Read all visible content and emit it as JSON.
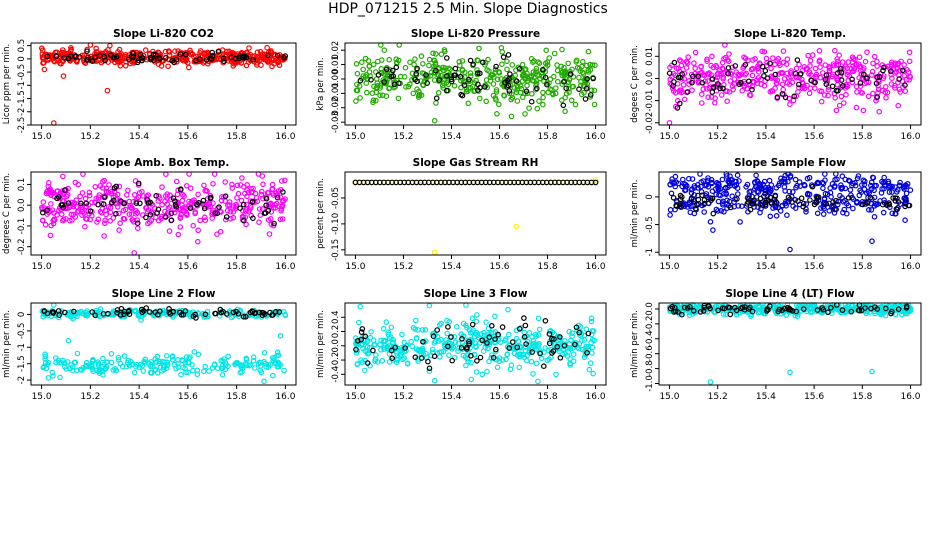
{
  "figure": {
    "title": "HDP_071215  2.5 Min. Slope Diagnostics"
  },
  "chart_data": [
    {
      "type": "scatter",
      "title": "Slope Li-820 CO2",
      "ylabel": "Licor ppm per min.",
      "xlabel": "",
      "xlim": [
        15.0,
        16.0
      ],
      "ylim": [
        -2.5,
        0.6
      ],
      "xticks": [
        "15.0",
        "15.2",
        "15.4",
        "15.6",
        "15.8",
        "16.0"
      ],
      "yticks": [
        {
          "v": 0.5,
          "label": "0.5"
        },
        {
          "v": 0,
          "label": "0"
        },
        {
          "v": -0.5,
          "label": "-0.5"
        },
        {
          "v": -1,
          "label": "-1"
        },
        {
          "v": -1.5,
          "label": "-1.5"
        },
        {
          "v": -2,
          "label": "-2"
        },
        {
          "v": -2.5,
          "label": "-2.5"
        }
      ],
      "series": [
        {
          "name": "all",
          "color": "#ff0000",
          "n": 420,
          "center": 0.05,
          "spread": 0.13,
          "outliers": [
            [
              15.05,
              -2.45
            ],
            [
              15.12,
              0.42
            ],
            [
              15.2,
              0.55
            ],
            [
              15.28,
              0.5
            ],
            [
              15.27,
              -1.2
            ],
            [
              15.09,
              -0.65
            ],
            [
              15.32,
              0.35
            ]
          ]
        },
        {
          "name": "selected",
          "color": "#000000",
          "n": 70,
          "center": 0.05,
          "spread": 0.1,
          "outliers": []
        }
      ]
    },
    {
      "type": "scatter",
      "title": "Slope Li-820 Pressure",
      "ylabel": "kPa per min.",
      "xlabel": "",
      "xlim": [
        15.0,
        16.0
      ],
      "ylim": [
        -0.032,
        0.025
      ],
      "xticks": [
        "15.0",
        "15.2",
        "15.4",
        "15.6",
        "15.8",
        "16.0"
      ],
      "yticks": [
        {
          "v": 0.02,
          "label": "0.02"
        },
        {
          "v": 0.01,
          "label": "0.01"
        },
        {
          "v": 0,
          "label": "0.00"
        },
        {
          "v": -0.01,
          "label": "-0.01"
        },
        {
          "v": -0.02,
          "label": "-0.02"
        },
        {
          "v": -0.03,
          "label": "-0.03"
        }
      ],
      "series": [
        {
          "name": "all",
          "color": "#22aa00",
          "n": 420,
          "center": 0.0,
          "spread": 0.0085,
          "outliers": [
            [
              15.33,
              -0.029
            ],
            [
              15.12,
              0.02
            ],
            [
              15.97,
              0.019
            ],
            [
              15.65,
              -0.026
            ]
          ]
        },
        {
          "name": "selected",
          "color": "#000000",
          "n": 70,
          "center": 0.0,
          "spread": 0.007,
          "outliers": []
        }
      ]
    },
    {
      "type": "scatter",
      "title": "Slope Li-820 Temp.",
      "ylabel": "degees C per min.",
      "xlabel": "",
      "xlim": [
        15.0,
        16.0
      ],
      "ylim": [
        -0.021,
        0.016
      ],
      "xticks": [
        "15.0",
        "15.2",
        "15.4",
        "15.6",
        "15.8",
        "16.0"
      ],
      "yticks": [
        {
          "v": 0.01,
          "label": "0.01"
        },
        {
          "v": 0,
          "label": "0.0"
        },
        {
          "v": -0.01,
          "label": "-0.01"
        },
        {
          "v": -0.02,
          "label": "-0.02"
        }
      ],
      "series": [
        {
          "name": "all",
          "color": "#ff00ff",
          "n": 420,
          "center": 0.0,
          "spread": 0.0055,
          "outliers": [
            [
              15.23,
              0.016
            ],
            [
              15.0,
              -0.02
            ],
            [
              15.87,
              -0.015
            ]
          ]
        },
        {
          "name": "selected",
          "color": "#000000",
          "n": 70,
          "center": 0.0,
          "spread": 0.004,
          "outliers": []
        }
      ]
    },
    {
      "type": "scatter",
      "title": "Slope Amb. Box Temp.",
      "ylabel": "degrees C per min.",
      "xlabel": "",
      "xlim": [
        15.0,
        16.0
      ],
      "ylim": [
        -0.24,
        0.16
      ],
      "xticks": [
        "15.0",
        "15.2",
        "15.4",
        "15.6",
        "15.8",
        "16.0"
      ],
      "yticks": [
        {
          "v": 0.1,
          "label": "0.1"
        },
        {
          "v": 0,
          "label": "0.0"
        },
        {
          "v": -0.1,
          "label": "-0.1"
        },
        {
          "v": -0.2,
          "label": "-0.2"
        }
      ],
      "series": [
        {
          "name": "all",
          "color": "#ff00ff",
          "n": 420,
          "center": 0.0,
          "spread": 0.06,
          "outliers": [
            [
              15.38,
              -0.23
            ],
            [
              15.17,
              0.15
            ],
            [
              15.71,
              0.15
            ]
          ]
        },
        {
          "name": "selected",
          "color": "#000000",
          "n": 70,
          "center": 0.0,
          "spread": 0.05,
          "outliers": []
        }
      ]
    },
    {
      "type": "scatter",
      "title": "Slope Gas Stream RH",
      "ylabel": "percent per min.",
      "xlabel": "",
      "xlim": [
        15.0,
        16.0
      ],
      "ylim": [
        -0.16,
        0.0
      ],
      "xticks": [
        "15.0",
        "15.2",
        "15.4",
        "15.6",
        "15.8",
        "16.0"
      ],
      "yticks": [
        {
          "v": -0.05,
          "label": "-0.05"
        },
        {
          "v": -0.1,
          "label": "-0.10"
        },
        {
          "v": -0.15,
          "label": "-0.15"
        }
      ],
      "series": [
        {
          "name": "all",
          "color": "#ffee00",
          "n": 60,
          "center": -0.02,
          "spread": 0.0,
          "outliers": [
            [
              15.33,
              -0.155
            ],
            [
              15.67,
              -0.105
            ],
            [
              15.0,
              -0.02
            ],
            [
              16.0,
              -0.015
            ]
          ]
        },
        {
          "name": "selected",
          "color": "#000000",
          "n": 60,
          "center": -0.02,
          "spread": 0.0,
          "outliers": []
        }
      ]
    },
    {
      "type": "scatter",
      "title": "Slope Sample Flow",
      "ylabel": "ml/min per min.",
      "xlabel": "",
      "xlim": [
        15.0,
        16.0
      ],
      "ylim": [
        -1.05,
        0.45
      ],
      "xticks": [
        "15.0",
        "15.2",
        "15.4",
        "15.6",
        "15.8",
        "16.0"
      ],
      "yticks": [
        {
          "v": 0,
          "label": "0"
        },
        {
          "v": -0.5,
          "label": "-0.5"
        },
        {
          "v": -1,
          "label": "-1"
        }
      ],
      "series": [
        {
          "name": "all",
          "color": "#0000dd",
          "n": 420,
          "center": 0.0,
          "spread": 0.18,
          "outliers": [
            [
              15.17,
              -0.45
            ],
            [
              15.5,
              -0.95
            ],
            [
              15.84,
              -0.8
            ],
            [
              15.69,
              0.42
            ],
            [
              15.18,
              -0.6
            ]
          ]
        },
        {
          "name": "selected",
          "color": "#000000",
          "n": 70,
          "center": -0.1,
          "spread": 0.08,
          "outliers": []
        }
      ]
    },
    {
      "type": "scatter",
      "title": "Slope Line 2 Flow",
      "ylabel": "ml/min per min.",
      "xlabel": "",
      "xlim": [
        15.0,
        16.0
      ],
      "ylim": [
        -2.15,
        0.35
      ],
      "xticks": [
        "15.0",
        "15.2",
        "15.4",
        "15.6",
        "15.8",
        "16.0"
      ],
      "yticks": [
        {
          "v": 0,
          "label": "0"
        },
        {
          "v": -0.5,
          "label": "-0.5"
        },
        {
          "v": -1,
          "label": "-1"
        },
        {
          "v": -1.5,
          "label": "-1.5"
        },
        {
          "v": -2,
          "label": "-2"
        }
      ],
      "series": [
        {
          "name": "all",
          "color": "#00e5e5",
          "n": 420,
          "center": -0.75,
          "spread": 0.2,
          "outliers": [
            [
              15.05,
              0.3
            ],
            [
              15.11,
              -0.8
            ],
            [
              15.98,
              -0.65
            ]
          ]
        },
        {
          "name": "selected",
          "color": "#000000",
          "n": 70,
          "center": 0.05,
          "spread": 0.06,
          "outliers": []
        }
      ]
    },
    {
      "type": "scatter",
      "title": "Slope Line 3 Flow",
      "ylabel": "ml/min per min.",
      "xlabel": "",
      "xlim": [
        15.0,
        16.0
      ],
      "ylim": [
        -0.55,
        0.6
      ],
      "xticks": [
        "15.0",
        "15.2",
        "15.4",
        "15.6",
        "15.8",
        "16.0"
      ],
      "yticks": [
        {
          "v": 0.4,
          "label": "0.4"
        },
        {
          "v": 0.2,
          "label": "0.2"
        },
        {
          "v": 0,
          "label": "0.0"
        },
        {
          "v": -0.2,
          "label": "-0.2"
        },
        {
          "v": -0.4,
          "label": "-0.4"
        }
      ],
      "series": [
        {
          "name": "all",
          "color": "#00e5e5",
          "n": 420,
          "center": 0.0,
          "spread": 0.17,
          "outliers": [
            [
              15.46,
              0.57
            ],
            [
              15.02,
              0.55
            ],
            [
              15.76,
              -0.5
            ],
            [
              15.33,
              -0.49
            ]
          ]
        },
        {
          "name": "selected",
          "color": "#000000",
          "n": 70,
          "center": 0.0,
          "spread": 0.15,
          "outliers": []
        }
      ]
    },
    {
      "type": "scatter",
      "title": "Slope Line 4 (LT) Flow",
      "ylabel": "ml/min per min.",
      "xlabel": "",
      "xlim": [
        15.0,
        16.0
      ],
      "ylim": [
        -1.02,
        0.08
      ],
      "xticks": [
        "15.0",
        "15.2",
        "15.4",
        "15.6",
        "15.8",
        "16.0"
      ],
      "yticks": [
        {
          "v": 0,
          "label": "0.0"
        },
        {
          "v": -0.2,
          "label": "-0.2"
        },
        {
          "v": -0.4,
          "label": "-0.4"
        },
        {
          "v": -0.6,
          "label": "-0.6"
        },
        {
          "v": -0.8,
          "label": "-0.8"
        },
        {
          "v": -1,
          "label": "-1.0"
        }
      ],
      "series": [
        {
          "name": "all",
          "color": "#00e5e5",
          "n": 420,
          "center": 0.0,
          "spread": 0.035,
          "outliers": [
            [
              15.17,
              -0.98
            ],
            [
              15.5,
              -0.85
            ],
            [
              15.84,
              -0.84
            ],
            [
              15.06,
              0.06
            ]
          ]
        },
        {
          "name": "selected",
          "color": "#000000",
          "n": 70,
          "center": 0.0,
          "spread": 0.03,
          "outliers": []
        }
      ]
    }
  ]
}
